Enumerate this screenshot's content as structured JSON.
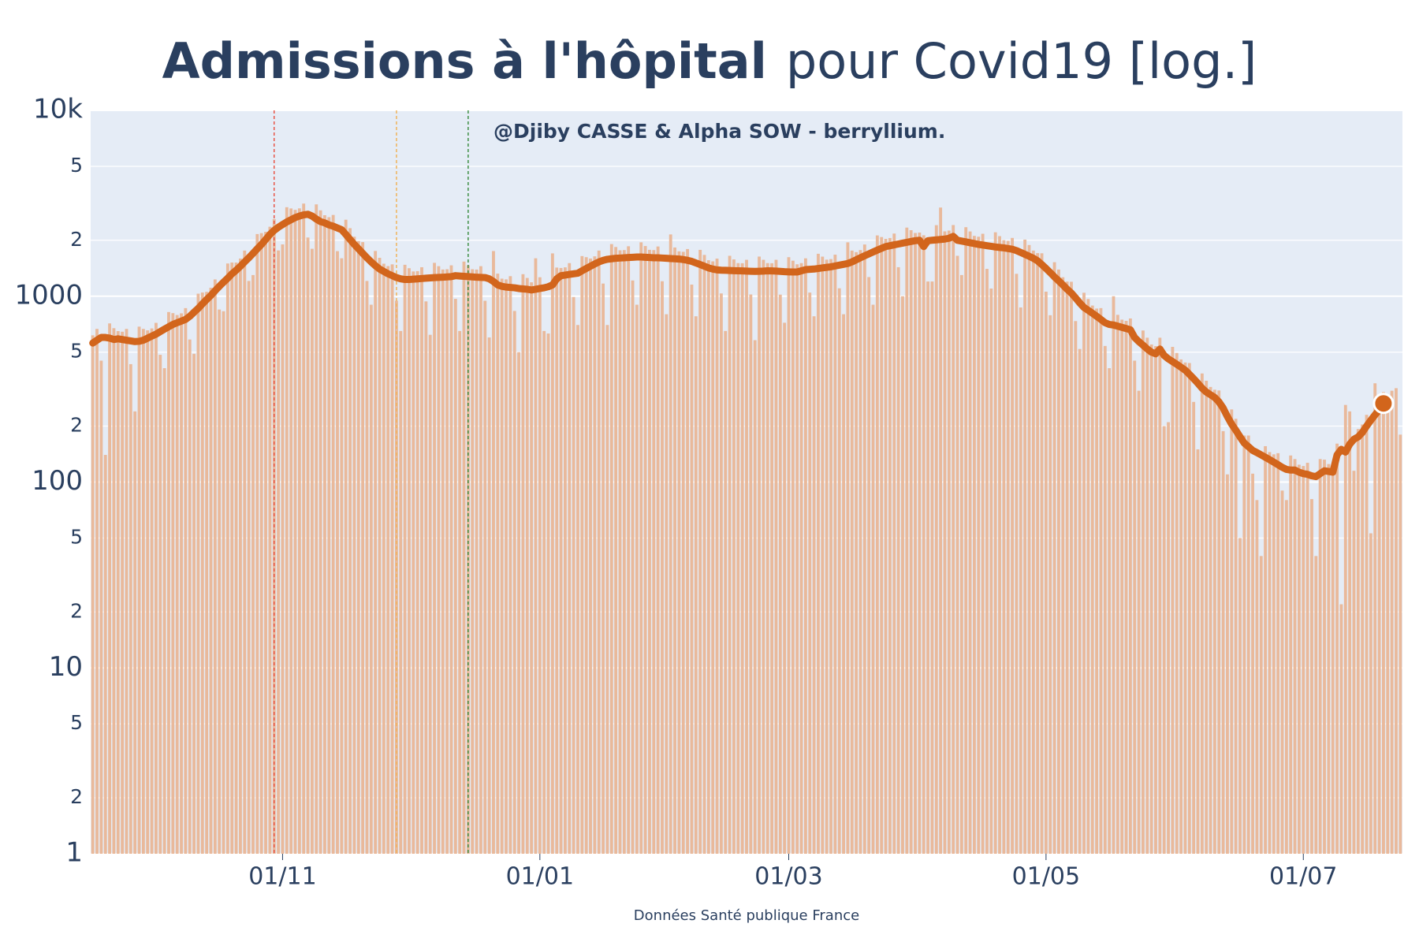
{
  "chart_data": {
    "type": "bar-line",
    "title": {
      "bold": "Admissions à l'hôpital",
      "normal": "pour Covid19 [log.]"
    },
    "annotation": "@Djiby CASSE & Alpha SOW - berryllium.",
    "source": "Données Santé publique France",
    "x": [
      "17/09",
      "18/09",
      "19/09",
      "20/09",
      "21/09",
      "22/09",
      "23/09",
      "24/09",
      "25/09",
      "26/09",
      "27/09",
      "28/09",
      "29/09",
      "30/09",
      "01/10",
      "02/10",
      "03/10",
      "04/10",
      "05/10",
      "06/10",
      "07/10",
      "08/10",
      "09/10",
      "10/10",
      "11/10",
      "12/10",
      "13/10",
      "14/10",
      "15/10",
      "16/10",
      "17/10",
      "18/10",
      "19/10",
      "20/10",
      "21/10",
      "22/10",
      "23/10",
      "24/10",
      "25/10",
      "26/10",
      "27/10",
      "28/10",
      "29/10",
      "30/10",
      "31/10",
      "01/11",
      "02/11",
      "03/11",
      "04/11",
      "05/11",
      "06/11",
      "07/11",
      "08/11",
      "09/11",
      "10/11",
      "11/11",
      "12/11",
      "13/11",
      "14/11",
      "15/11",
      "16/11",
      "17/11",
      "18/11",
      "19/11",
      "20/11",
      "21/11",
      "22/11",
      "23/11",
      "24/11",
      "25/11",
      "26/11",
      "27/11",
      "28/11",
      "29/11",
      "30/11",
      "01/12",
      "02/12",
      "03/12",
      "04/12",
      "05/12",
      "06/12",
      "07/12",
      "08/12",
      "09/12",
      "10/12",
      "11/12",
      "12/12",
      "13/12",
      "14/12",
      "15/12",
      "16/12",
      "17/12",
      "18/12",
      "19/12",
      "20/12",
      "21/12",
      "22/12",
      "23/12",
      "24/12",
      "25/12",
      "26/12",
      "27/12",
      "28/12",
      "29/12",
      "30/12",
      "31/12",
      "01/01",
      "02/01",
      "03/01",
      "04/01",
      "05/01",
      "06/01",
      "07/01",
      "08/01",
      "09/01",
      "10/01",
      "11/01",
      "12/01",
      "13/01",
      "14/01",
      "15/01",
      "16/01",
      "17/01",
      "18/01",
      "19/01",
      "20/01",
      "21/01",
      "22/01",
      "23/01",
      "24/01",
      "25/01",
      "26/01",
      "27/01",
      "28/01",
      "29/01",
      "30/01",
      "31/01",
      "01/02",
      "02/02",
      "03/02",
      "04/02",
      "05/02",
      "06/02",
      "07/02",
      "08/02",
      "09/02",
      "10/02",
      "11/02",
      "12/02",
      "13/02",
      "14/02",
      "15/02",
      "16/02",
      "17/02",
      "18/02",
      "19/02",
      "20/02",
      "21/02",
      "22/02",
      "23/02",
      "24/02",
      "25/02",
      "26/02",
      "27/02",
      "28/02",
      "01/03",
      "02/03",
      "03/03",
      "04/03",
      "05/03",
      "06/03",
      "07/03",
      "08/03",
      "09/03",
      "10/03",
      "11/03",
      "12/03",
      "13/03",
      "14/03",
      "15/03",
      "16/03",
      "17/03",
      "18/03",
      "19/03",
      "20/03",
      "21/03",
      "22/03",
      "23/03",
      "24/03",
      "25/03",
      "26/03",
      "27/03",
      "28/03",
      "29/03",
      "30/03",
      "31/03",
      "01/04",
      "02/04",
      "03/04",
      "04/04",
      "05/04",
      "06/04",
      "07/04",
      "08/04",
      "09/04",
      "10/04",
      "11/04",
      "12/04",
      "13/04",
      "14/04",
      "15/04",
      "16/04",
      "17/04",
      "18/04",
      "19/04",
      "20/04",
      "21/04",
      "22/04",
      "23/04",
      "24/04",
      "25/04",
      "26/04",
      "27/04",
      "28/04",
      "29/04",
      "30/04",
      "01/05",
      "02/05",
      "03/05",
      "04/05",
      "05/05",
      "06/05",
      "07/05",
      "08/05",
      "09/05",
      "10/05",
      "11/05",
      "12/05",
      "13/05",
      "14/05",
      "15/05",
      "16/05",
      "17/05",
      "18/05",
      "19/05",
      "20/05",
      "21/05",
      "22/05",
      "23/05",
      "24/05",
      "25/05",
      "26/05",
      "27/05",
      "28/05",
      "29/05",
      "30/05",
      "31/05",
      "01/06",
      "02/06",
      "03/06",
      "04/06",
      "05/06",
      "06/06",
      "07/06",
      "08/06",
      "09/06",
      "10/06",
      "11/06",
      "12/06",
      "13/06",
      "14/06",
      "15/06",
      "16/06",
      "17/06",
      "18/06",
      "19/06",
      "20/06",
      "21/06",
      "22/06",
      "23/06",
      "24/06",
      "25/06",
      "26/06",
      "27/06",
      "28/06",
      "29/06",
      "30/06",
      "01/07",
      "02/07",
      "03/07",
      "04/07",
      "05/07",
      "06/07",
      "07/07",
      "08/07",
      "09/07",
      "10/07",
      "11/07",
      "12/07",
      "13/07",
      "14/07",
      "15/07",
      "16/07",
      "17/07",
      "18/07",
      "19/07",
      "20/07",
      "21/07",
      "22/07",
      "23/07",
      "24/07"
    ],
    "xticks": [
      "01/11",
      "01/01",
      "01/03",
      "01/05",
      "01/07"
    ],
    "series": [
      {
        "type": "bar",
        "color": "#e9b99b",
        "values": [
          616,
          667,
          450,
          140,
          714,
          673,
          649,
          644,
          667,
          431,
          240,
          686,
          667,
          655,
          671,
          719,
          484,
          410,
          822,
          811,
          792,
          809,
          863,
          585,
          490,
          1032,
          1047,
          1056,
          1111,
          1231,
          848,
          830,
          1500,
          1518,
          1518,
          1595,
          1760,
          1208,
          1300,
          2160,
          2185,
          2222,
          2365,
          2599,
          1763,
          1900,
          3012,
          2967,
          2915,
          2970,
          3151,
          2070,
          1800,
          3120,
          2898,
          2728,
          2662,
          2737,
          1748,
          1600,
          2580,
          2323,
          2090,
          1980,
          1955,
          1208,
          900,
          1752,
          1610,
          1496,
          1452,
          1484,
          945,
          650,
          1476,
          1415,
          1359,
          1364,
          1432,
          938,
          620,
          1512,
          1451,
          1392,
          1397,
          1466,
          968,
          650,
          1536,
          1466,
          1397,
          1392,
          1451,
          945,
          600,
          1750,
          1323,
          1243,
          1232,
          1282,
          833,
          500,
          1314,
          1254,
          1188,
          1600,
          1265,
          650,
          630,
          1700,
          1426,
          1419,
          1430,
          1507,
          990,
          700,
          1644,
          1622,
          1595,
          1639,
          1760,
          1170,
          700,
          1908,
          1840,
          1766,
          1771,
          1857,
          1215,
          900,
          1950,
          1863,
          1777,
          1771,
          1852,
          1204,
          800,
          2150,
          1829,
          1744,
          1733,
          1794,
          1155,
          780,
          1776,
          1668,
          1562,
          1540,
          1593,
          1035,
          650,
          1650,
          1578,
          1507,
          1505,
          1570,
          1022,
          580,
          1634,
          1570,
          1507,
          1505,
          1570,
          1020,
          720,
          1622,
          1553,
          1485,
          1507,
          1599,
          1046,
          780,
          1692,
          1633,
          1573,
          1584,
          1673,
          1103,
          800,
          1950,
          1760,
          1727,
          1771,
          1898,
          1268,
          900,
          2124,
          2082,
          2035,
          2057,
          2174,
          1433,
          1000,
          2340,
          2266,
          2189,
          2200,
          2128,
          1200,
          1200,
          2412,
          3000,
          2233,
          2255,
          2415,
          1650,
          1300,
          2352,
          2231,
          2112,
          2090,
          2168,
          1403,
          1100,
          2208,
          2105,
          2002,
          1986,
          2059,
          1320,
          870,
          2016,
          1886,
          1760,
          1705,
          1702,
          1058,
          790,
          1524,
          1392,
          1265,
          1199,
          1196,
          735,
          520,
          1044,
          966,
          891,
          858,
          863,
          540,
          410,
          1000,
          794,
          748,
          737,
          759,
          450,
          310,
          654,
          598,
          550,
          539,
          598,
          200,
          210,
          534,
          495,
          457,
          440,
          437,
          270,
          150,
          384,
          351,
          325,
          314,
          311,
          188,
          110,
          246,
          219,
          50,
          178,
          178,
          111,
          80,
          40,
          156,
          145,
          141,
          143,
          90,
          80,
          139,
          133,
          124,
          122,
          127,
          81,
          40,
          133,
          132,
          125,
          124,
          161,
          22,
          260,
          240,
          115,
          193,
          204,
          230,
          53,
          340,
          294,
          305,
          240,
          310,
          320,
          180
        ]
      },
      {
        "type": "line",
        "color": "#d2651c",
        "values": [
          560,
          580,
          600,
          600,
          595,
          585,
          590,
          585,
          580,
          575,
          570,
          572,
          580,
          595,
          610,
          625,
          645,
          665,
          685,
          705,
          720,
          735,
          750,
          780,
          820,
          860,
          910,
          960,
          1010,
          1070,
          1130,
          1190,
          1250,
          1320,
          1380,
          1450,
          1530,
          1610,
          1700,
          1800,
          1900,
          2020,
          2150,
          2260,
          2350,
          2430,
          2510,
          2580,
          2650,
          2700,
          2740,
          2760,
          2700,
          2600,
          2520,
          2480,
          2420,
          2380,
          2330,
          2280,
          2150,
          2020,
          1900,
          1800,
          1700,
          1610,
          1530,
          1460,
          1400,
          1360,
          1320,
          1290,
          1260,
          1240,
          1230,
          1230,
          1235,
          1240,
          1245,
          1250,
          1255,
          1260,
          1262,
          1265,
          1270,
          1275,
          1290,
          1285,
          1280,
          1275,
          1270,
          1265,
          1262,
          1260,
          1240,
          1200,
          1150,
          1130,
          1120,
          1115,
          1110,
          1100,
          1095,
          1090,
          1080,
          1090,
          1100,
          1110,
          1125,
          1150,
          1240,
          1290,
          1300,
          1310,
          1320,
          1330,
          1370,
          1410,
          1450,
          1490,
          1530,
          1560,
          1580,
          1590,
          1600,
          1605,
          1610,
          1615,
          1620,
          1625,
          1625,
          1620,
          1615,
          1610,
          1610,
          1605,
          1600,
          1595,
          1590,
          1585,
          1575,
          1560,
          1540,
          1510,
          1480,
          1450,
          1420,
          1400,
          1385,
          1380,
          1378,
          1375,
          1372,
          1370,
          1368,
          1365,
          1362,
          1360,
          1362,
          1365,
          1370,
          1368,
          1365,
          1360,
          1355,
          1352,
          1350,
          1350,
          1370,
          1390,
          1395,
          1400,
          1410,
          1420,
          1430,
          1440,
          1455,
          1470,
          1485,
          1500,
          1530,
          1570,
          1610,
          1650,
          1690,
          1730,
          1770,
          1810,
          1850,
          1870,
          1890,
          1910,
          1930,
          1950,
          1970,
          1990,
          2000,
          1850,
          1990,
          2000,
          2010,
          2020,
          2030,
          2050,
          2100,
          2000,
          1980,
          1960,
          1940,
          1920,
          1900,
          1885,
          1870,
          1855,
          1840,
          1830,
          1820,
          1805,
          1790,
          1760,
          1720,
          1680,
          1640,
          1600,
          1550,
          1480,
          1410,
          1340,
          1270,
          1210,
          1150,
          1090,
          1040,
          980,
          920,
          870,
          840,
          810,
          780,
          750,
          720,
          705,
          700,
          690,
          680,
          670,
          660,
          600,
          570,
          545,
          520,
          500,
          490,
          520,
          480,
          460,
          445,
          430,
          415,
          400,
          380,
          360,
          340,
          320,
          305,
          295,
          285,
          270,
          250,
          225,
          205,
          190,
          175,
          162,
          155,
          148,
          144,
          140,
          136,
          132,
          128,
          124,
          120,
          117,
          116,
          116,
          113,
          111,
          110,
          108,
          107,
          111,
          115,
          114,
          113,
          140,
          150,
          145,
          160,
          170,
          175,
          185,
          200,
          215,
          230,
          245,
          265,
          null,
          null,
          null,
          null
        ]
      }
    ],
    "vlines": [
      {
        "x": "30/10",
        "color": "#e8564a"
      },
      {
        "x": "28/11",
        "color": "#f0b35a"
      },
      {
        "x": "15/12",
        "color": "#3f8f45"
      }
    ],
    "end_marker": true,
    "log_y": true,
    "grid": true,
    "ylim": [
      1,
      10000
    ],
    "yticks": [
      1,
      2,
      5,
      10,
      {
        "value": 20,
        "label": "2"
      },
      {
        "value": 50,
        "label": "5"
      },
      100,
      {
        "value": 200,
        "label": "2"
      },
      {
        "value": 500,
        "label": "5"
      },
      1000,
      {
        "value": 2000,
        "label": "2"
      },
      {
        "value": 5000,
        "label": "5"
      },
      {
        "value": 10000,
        "label": "10k"
      }
    ]
  }
}
